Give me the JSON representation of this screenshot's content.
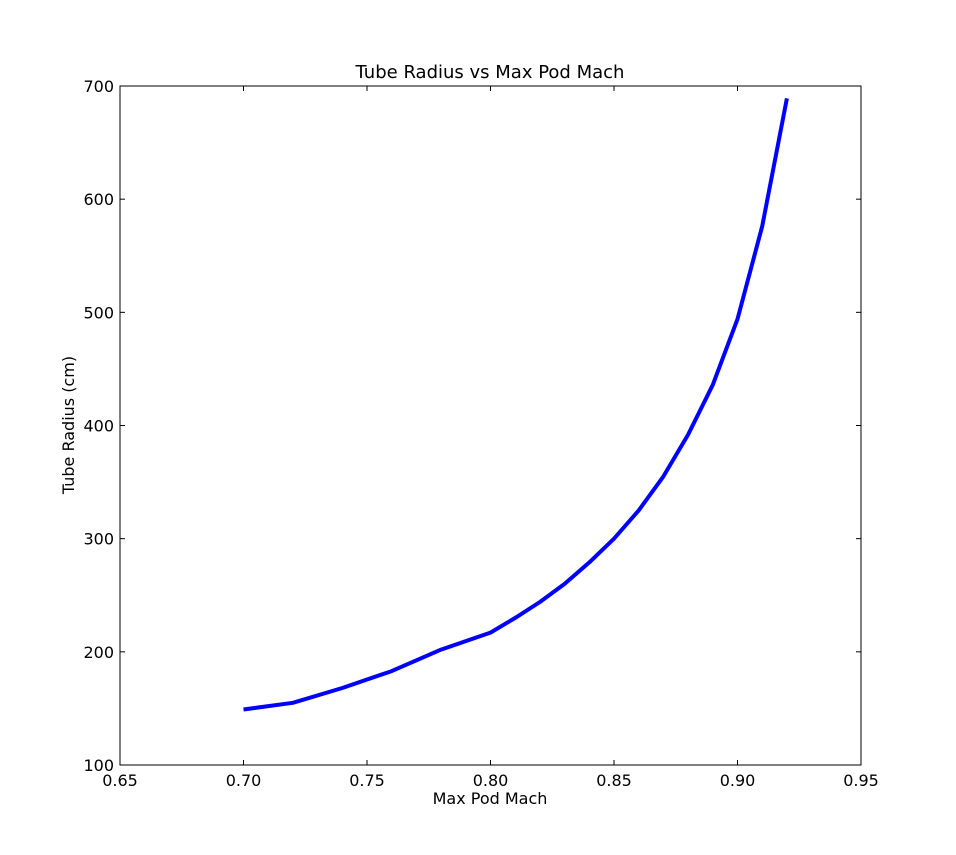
{
  "chart_data": {
    "type": "line",
    "title": "Tube Radius vs Max Pod Mach",
    "xlabel": "Max Pod Mach",
    "ylabel": "Tube Radius (cm)",
    "xlim": [
      0.65,
      0.95
    ],
    "ylim": [
      100,
      700
    ],
    "xticks": [
      "0.65",
      "0.70",
      "0.75",
      "0.80",
      "0.85",
      "0.90",
      "0.95"
    ],
    "yticks": [
      "100",
      "200",
      "300",
      "400",
      "500",
      "600",
      "700"
    ],
    "grid": false,
    "legend": "none",
    "series": [
      {
        "color": "#0000ff",
        "x": [
          0.7,
          0.72,
          0.74,
          0.76,
          0.78,
          0.8,
          0.81,
          0.82,
          0.83,
          0.84,
          0.85,
          0.86,
          0.87,
          0.88,
          0.89,
          0.9,
          0.91,
          0.92
        ],
        "y": [
          149,
          155,
          168,
          183,
          202,
          217,
          230,
          244,
          260,
          279,
          300,
          325,
          355,
          392,
          436,
          494,
          576,
          689
        ]
      }
    ]
  }
}
